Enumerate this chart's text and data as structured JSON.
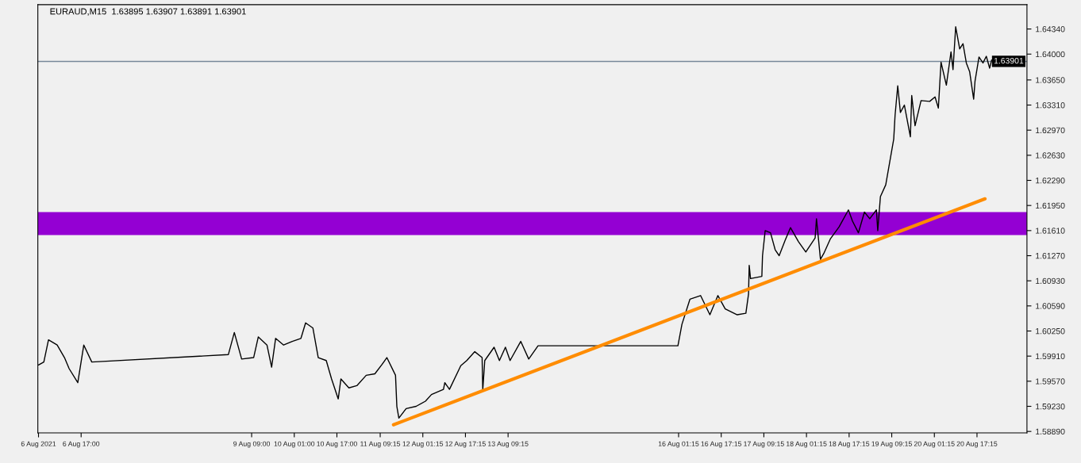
{
  "chart_data": {
    "type": "line",
    "title": "EURAUD,M15  1.63895 1.63907 1.63891 1.63901",
    "series": [
      {
        "color": "#000000",
        "x": [
          "2021-08-06T01:00",
          "2021-08-06T03:00",
          "2021-08-06T04:45",
          "2021-08-06T08:00",
          "2021-08-06T10:45",
          "2021-08-06T12:30",
          "2021-08-06T15:45",
          "2021-08-06T18:00",
          "2021-08-06T21:00",
          "2021-08-09T00:15",
          "2021-08-09T02:30",
          "2021-08-09T05:15",
          "2021-08-09T09:45",
          "2021-08-09T11:30",
          "2021-08-09T14:45",
          "2021-08-09T16:30",
          "2021-08-09T18:00",
          "2021-08-09T21:00",
          "2021-08-10T00:15",
          "2021-08-10T03:30",
          "2021-08-10T05:15",
          "2021-08-10T08:00",
          "2021-08-10T10:00",
          "2021-08-10T13:00",
          "2021-08-10T15:00",
          "2021-08-10T17:30",
          "2021-08-10T18:30",
          "2021-08-10T21:30",
          "2021-08-11T00:30",
          "2021-08-11T04:00",
          "2021-08-11T07:15",
          "2021-08-11T10:00",
          "2021-08-11T11:45",
          "2021-08-11T15:00",
          "2021-08-11T15:30",
          "2021-08-11T16:15",
          "2021-08-11T19:00",
          "2021-08-11T22:45",
          "2021-08-12T02:15",
          "2021-08-12T04:30",
          "2021-08-12T09:00",
          "2021-08-12T09:30",
          "2021-08-12T11:15",
          "2021-08-12T15:30",
          "2021-08-12T17:45",
          "2021-08-12T20:45",
          "2021-08-12T23:30",
          "2021-08-12T23:45",
          "2021-08-13T00:30",
          "2021-08-13T04:00",
          "2021-08-13T06:00",
          "2021-08-13T08:15",
          "2021-08-13T10:00",
          "2021-08-13T14:00",
          "2021-08-13T17:00",
          "2021-08-13T20:30",
          "2021-08-16T01:00",
          "2021-08-16T02:30",
          "2021-08-16T05:30",
          "2021-08-16T09:30",
          "2021-08-16T13:00",
          "2021-08-16T16:00",
          "2021-08-16T18:45",
          "2021-08-16T23:15",
          "2021-08-17T02:30",
          "2021-08-17T03:30",
          "2021-08-17T03:45",
          "2021-08-17T04:15",
          "2021-08-17T08:30",
          "2021-08-17T08:45",
          "2021-08-17T09:45",
          "2021-08-17T11:45",
          "2021-08-17T13:30",
          "2021-08-17T15:00",
          "2021-08-17T17:15",
          "2021-08-17T19:15",
          "2021-08-17T22:15",
          "2021-08-18T01:00",
          "2021-08-18T04:30",
          "2021-08-18T05:00",
          "2021-08-18T06:30",
          "2021-08-18T07:45",
          "2021-08-18T10:15",
          "2021-08-18T13:30",
          "2021-08-18T17:00",
          "2021-08-18T18:30",
          "2021-08-18T20:45",
          "2021-08-18T23:00",
          "2021-08-19T01:00",
          "2021-08-19T03:30",
          "2021-08-19T04:00",
          "2021-08-19T05:00",
          "2021-08-19T07:00",
          "2021-08-19T10:00",
          "2021-08-19T10:30",
          "2021-08-19T11:30",
          "2021-08-19T12:30",
          "2021-08-19T14:00",
          "2021-08-19T16:15",
          "2021-08-19T16:45",
          "2021-08-19T18:00",
          "2021-08-19T20:15",
          "2021-08-19T23:30",
          "2021-08-20T01:30",
          "2021-08-20T02:45",
          "2021-08-20T03:45",
          "2021-08-20T05:45",
          "2021-08-20T07:30",
          "2021-08-20T08:15",
          "2021-08-20T09:15",
          "2021-08-20T10:45",
          "2021-08-20T12:00",
          "2021-08-20T13:15",
          "2021-08-20T14:30",
          "2021-08-20T16:00",
          "2021-08-20T16:30",
          "2021-08-20T18:00",
          "2021-08-20T19:30",
          "2021-08-20T20:45",
          "2021-08-20T22:00",
          "2021-08-20T22:45"
        ],
        "values": [
          1.5979,
          1.5983,
          1.6013,
          1.6006,
          1.5989,
          1.5974,
          1.5955,
          1.6006,
          1.5983,
          1.5993,
          1.6023,
          1.5987,
          1.5989,
          1.6017,
          1.6006,
          1.5976,
          1.6015,
          1.6006,
          1.6011,
          1.6015,
          1.6036,
          1.6029,
          1.5989,
          1.5985,
          1.596,
          1.5933,
          1.596,
          1.5948,
          1.5951,
          1.5965,
          1.5967,
          1.598,
          1.5989,
          1.5965,
          1.5923,
          1.5907,
          1.592,
          1.5923,
          1.593,
          1.5939,
          1.5946,
          1.5955,
          1.5946,
          1.5978,
          1.5985,
          1.5997,
          1.5989,
          1.5945,
          1.5985,
          1.6003,
          1.5985,
          1.6003,
          1.5985,
          1.6011,
          1.5987,
          1.6005,
          1.6005,
          1.6034,
          1.6068,
          1.6073,
          1.6047,
          1.6073,
          1.6055,
          1.6047,
          1.6049,
          1.6075,
          1.6114,
          1.6096,
          1.6099,
          1.6127,
          1.6161,
          1.6158,
          1.6135,
          1.6127,
          1.6148,
          1.6165,
          1.6146,
          1.6132,
          1.6151,
          1.6177,
          1.6122,
          1.613,
          1.615,
          1.6166,
          1.6189,
          1.6174,
          1.6158,
          1.6186,
          1.6177,
          1.6189,
          1.6161,
          1.6207,
          1.6223,
          1.6285,
          1.6317,
          1.6357,
          1.6321,
          1.6331,
          1.6288,
          1.6344,
          1.6303,
          1.6337,
          1.6336,
          1.6342,
          1.6327,
          1.6389,
          1.6358,
          1.6403,
          1.6379,
          1.6437,
          1.6407,
          1.6414,
          1.6388,
          1.6376,
          1.6339,
          1.6363,
          1.6396,
          1.6388,
          1.6397,
          1.6381,
          1.6392
        ]
      },
      {
        "type": "line",
        "color": "#ff8c00",
        "x": [
          "2021-08-11T14:15",
          "2021-08-20T20:15"
        ],
        "values": [
          1.5898,
          1.6204
        ]
      }
    ],
    "xlim": [
      "2021-08-06T00:45",
      "2021-08-21T12:00"
    ],
    "xticks": [
      {
        "value": "2021-08-06T01:00",
        "label": "6 Aug 2021"
      },
      {
        "value": "2021-08-06T17:00",
        "label": "6 Aug 17:00"
      },
      {
        "value": "2021-08-09T09:00",
        "label": "9 Aug 09:00"
      },
      {
        "value": "2021-08-10T01:00",
        "label": "10 Aug 01:00"
      },
      {
        "value": "2021-08-10T17:00",
        "label": "10 Aug 17:00"
      },
      {
        "value": "2021-08-11T09:15",
        "label": "11 Aug 09:15"
      },
      {
        "value": "2021-08-12T01:15",
        "label": "12 Aug 01:15"
      },
      {
        "value": "2021-08-12T17:15",
        "label": "12 Aug 17:15"
      },
      {
        "value": "2021-08-13T09:15",
        "label": "13 Aug 09:15"
      },
      {
        "value": "2021-08-16T01:15",
        "label": "16 Aug 01:15"
      },
      {
        "value": "2021-08-16T17:15",
        "label": "16 Aug 17:15"
      },
      {
        "value": "2021-08-17T09:15",
        "label": "17 Aug 09:15"
      },
      {
        "value": "2021-08-18T01:15",
        "label": "18 Aug 01:15"
      },
      {
        "value": "2021-08-18T17:15",
        "label": "18 Aug 17:15"
      },
      {
        "value": "2021-08-19T09:15",
        "label": "19 Aug 09:15"
      },
      {
        "value": "2021-08-20T01:15",
        "label": "20 Aug 01:15"
      },
      {
        "value": "2021-08-20T17:15",
        "label": "20 Aug 17:15"
      }
    ],
    "ylim": [
      1.5887,
      1.6467
    ],
    "yticks": [
      {
        "value": 1.5889,
        "label": "1.58890"
      },
      {
        "value": 1.5923,
        "label": "1.59230"
      },
      {
        "value": 1.5957,
        "label": "1.59570"
      },
      {
        "value": 1.5991,
        "label": "1.59910"
      },
      {
        "value": 1.6025,
        "label": "1.60250"
      },
      {
        "value": 1.6059,
        "label": "1.60590"
      },
      {
        "value": 1.6093,
        "label": "1.60930"
      },
      {
        "value": 1.6127,
        "label": "1.61270"
      },
      {
        "value": 1.6161,
        "label": "1.61610"
      },
      {
        "value": 1.6195,
        "label": "1.61950"
      },
      {
        "value": 1.6229,
        "label": "1.62290"
      },
      {
        "value": 1.6263,
        "label": "1.62630"
      },
      {
        "value": 1.6297,
        "label": "1.62970"
      },
      {
        "value": 1.6331,
        "label": "1.63310"
      },
      {
        "value": 1.6365,
        "label": "1.63650"
      },
      {
        "value": 1.64,
        "label": "1.64000"
      },
      {
        "value": 1.6434,
        "label": "1.64340"
      }
    ],
    "ref_lines": [
      {
        "axis": "y",
        "value": 1.63901,
        "label": "1.63901",
        "color": "#778899",
        "line_style": "solid"
      }
    ],
    "bands": [
      {
        "axis": "y",
        "from": 1.6155,
        "to": 1.6186,
        "color": "#9400d3"
      }
    ],
    "grid": false,
    "legend": false,
    "marker": "none",
    "line_style": "solid"
  }
}
